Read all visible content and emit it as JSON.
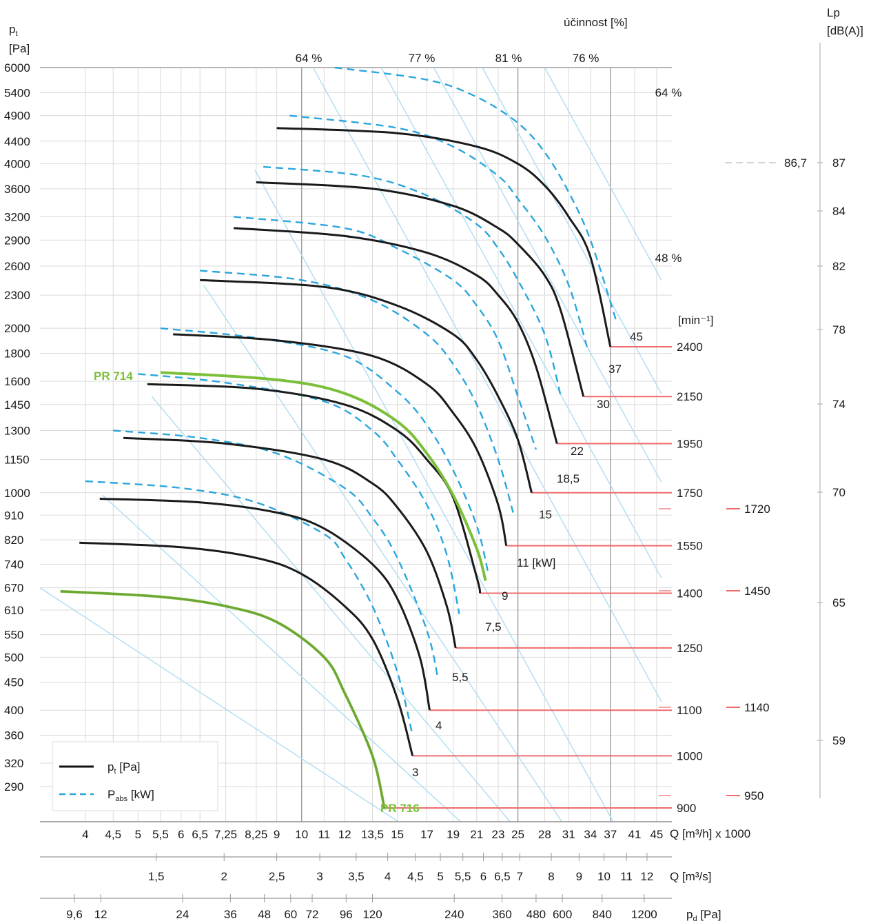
{
  "chart_data": {
    "type": "line",
    "title": "",
    "y_axis": {
      "label_line1": "p",
      "label_sub": "t",
      "label_line2": "[Pa]",
      "ticks": [
        "6000",
        "5400",
        "4900",
        "4400",
        "4000",
        "3600",
        "3200",
        "2900",
        "2600",
        "2300",
        "2000",
        "1800",
        "1600",
        "1450",
        "1300",
        "1150",
        "1000",
        "910",
        "820",
        "740",
        "670",
        "610",
        "550",
        "500",
        "450",
        "400",
        "360",
        "320",
        "290"
      ]
    },
    "x_axis_flow_mh": {
      "unit_label": "Q [m³/h] x 1000",
      "ticks": [
        "4",
        "4,5",
        "5",
        "5,5",
        "6",
        "6,5",
        "7,25",
        "8,25",
        "9",
        "10",
        "11",
        "12",
        "13,5",
        "15",
        "17",
        "19",
        "21",
        "23",
        "25",
        "28",
        "31",
        "34",
        "37",
        "41",
        "45"
      ]
    },
    "x_axis_flow_ms": {
      "unit_label": "Q [m³/s]",
      "ticks": [
        "1,5",
        "2",
        "2,5",
        "3",
        "3,5",
        "4",
        "4,5",
        "5",
        "5,5",
        "6",
        "6,5",
        "7",
        "8",
        "9",
        "10",
        "11",
        "12"
      ]
    },
    "x_axis_dynamic_pressure": {
      "unit_label_main": "p",
      "unit_label_sub": "d",
      "unit_label_tail": " [Pa]",
      "ticks": [
        "9,6",
        "12",
        "24",
        "36",
        "48",
        "60",
        "72",
        "96",
        "120",
        "240",
        "360",
        "480",
        "600",
        "840",
        "1200"
      ]
    },
    "efficiency": {
      "title": "účinnost [%]",
      "labels": [
        "64 %",
        "77 %",
        "81 %",
        "76 %",
        "64 %",
        "48 %"
      ]
    },
    "speed_axis": {
      "label": "[min⁻¹]",
      "values": [
        "2400",
        "2150",
        "1950",
        "1750",
        "1550",
        "1400",
        "1250",
        "1100",
        "1000",
        "900"
      ],
      "secondary_values": [
        "1720",
        "1450",
        "1140",
        "950"
      ]
    },
    "noise_axis": {
      "label_line1": "Lp",
      "label_line2": "[dB(A)]",
      "ticks": [
        "87",
        "84",
        "82",
        "78",
        "74",
        "70",
        "65",
        "59"
      ],
      "marker_value": "86,7"
    },
    "motor_power_labels": [
      "45",
      "37",
      "30",
      "22",
      "18,5",
      "15",
      "11 [kW]",
      "9",
      "7,5",
      "5,5",
      "4",
      "3"
    ],
    "legend": {
      "pt_prefix": "p",
      "pt_sub": "t",
      "pt_suffix": " [Pa]",
      "pabs_prefix": "P",
      "pabs_sub": "abs",
      "pabs_suffix": " [kW]"
    },
    "series_labels": [
      "PR 714",
      "PR 716"
    ],
    "curves_pt": [
      {
        "speed": "2400",
        "q": [
          9,
          15,
          21,
          25,
          28,
          31,
          34,
          37
        ],
        "pt": [
          4650,
          4550,
          4300,
          4000,
          3650,
          3200,
          2700,
          1850
        ]
      },
      {
        "speed": "2150",
        "q": [
          8.25,
          13.5,
          19,
          23,
          25,
          28,
          30,
          33
        ],
        "pt": [
          3700,
          3600,
          3350,
          3050,
          2850,
          2500,
          2150,
          1500
        ]
      },
      {
        "speed": "1950",
        "q": [
          7.5,
          12,
          17,
          21,
          23,
          25,
          27,
          29.5
        ],
        "pt": [
          3050,
          2950,
          2750,
          2500,
          2300,
          2050,
          1700,
          1230
        ]
      },
      {
        "speed": "1750",
        "q": [
          6.5,
          11,
          15,
          19,
          21,
          23,
          25,
          26.5
        ],
        "pt": [
          2450,
          2380,
          2200,
          1950,
          1750,
          1500,
          1250,
          1000
        ]
      },
      {
        "speed": "1550",
        "q": [
          5.8,
          9,
          13.5,
          17,
          19,
          21,
          23,
          23.8
        ],
        "pt": [
          1950,
          1900,
          1780,
          1580,
          1400,
          1200,
          950,
          800
        ]
      },
      {
        "speed": "1400",
        "q": [
          5.2,
          8.25,
          12,
          15,
          17,
          19,
          21,
          21.3
        ],
        "pt": [
          1580,
          1550,
          1450,
          1300,
          1150,
          980,
          700,
          655
        ]
      },
      {
        "speed": "1250",
        "q": [
          4.7,
          7.25,
          11,
          13.5,
          15,
          17,
          18.5,
          19.2
        ],
        "pt": [
          1260,
          1230,
          1150,
          1040,
          940,
          780,
          620,
          520
        ]
      },
      {
        "speed": "1100",
        "q": [
          4.25,
          6.5,
          9,
          11,
          13.5,
          15,
          16.5,
          17.2
        ],
        "pt": [
          975,
          960,
          920,
          860,
          740,
          640,
          500,
          400
        ]
      },
      {
        "speed": "1000",
        "q": [
          3.9,
          6,
          8.25,
          10,
          12,
          13.5,
          15,
          16
        ],
        "pt": [
          810,
          795,
          760,
          710,
          620,
          540,
          420,
          330
        ]
      },
      {
        "speed": "900",
        "q": [
          3.6,
          5.5,
          7.25,
          9,
          11,
          12,
          13.5,
          14.2
        ],
        "pt": [
          660,
          645,
          620,
          580,
          500,
          430,
          330,
          265
        ]
      }
    ],
    "curve_pr714": {
      "q": [
        5.5,
        9,
        12,
        15,
        17,
        19,
        21,
        21.8
      ],
      "pt": [
        1660,
        1610,
        1520,
        1350,
        1180,
        990,
        790,
        690
      ]
    },
    "curve_pr716": {
      "q": [
        3.6,
        5.5,
        7.25,
        9,
        11,
        12,
        13.5,
        14.2
      ],
      "pt": [
        660,
        645,
        620,
        580,
        500,
        430,
        330,
        265
      ]
    },
    "curves_pabs": [
      {
        "q": [
          11.5,
          17,
          21,
          25,
          28,
          31,
          34,
          38
        ],
        "pt": [
          6000,
          5700,
          5300,
          4750,
          4200,
          3550,
          2900,
          2050
        ]
      },
      {
        "q": [
          9.5,
          15,
          19,
          23,
          25,
          28,
          31,
          33.5
        ],
        "pt": [
          4900,
          4650,
          4300,
          3800,
          3450,
          2950,
          2400,
          1850
        ]
      },
      {
        "q": [
          8.5,
          13,
          17,
          21,
          23,
          25,
          28,
          30
        ],
        "pt": [
          3950,
          3800,
          3500,
          3100,
          2800,
          2450,
          1950,
          1500
        ]
      },
      {
        "q": [
          7.5,
          12,
          15,
          19,
          21,
          23,
          25,
          27
        ],
        "pt": [
          3200,
          3050,
          2800,
          2450,
          2200,
          1900,
          1500,
          1200
        ]
      },
      {
        "q": [
          6.5,
          10,
          13.5,
          17,
          19,
          21,
          23,
          24.5
        ],
        "pt": [
          2550,
          2450,
          2250,
          1950,
          1720,
          1450,
          1150,
          920
        ]
      },
      {
        "q": [
          5.5,
          8.25,
          12,
          15,
          17,
          19,
          21,
          22
        ],
        "pt": [
          2000,
          1920,
          1780,
          1530,
          1330,
          1100,
          870,
          720
        ]
      },
      {
        "q": [
          5,
          7.25,
          11,
          13.5,
          15,
          17,
          18.5,
          19.5
        ],
        "pt": [
          1650,
          1590,
          1470,
          1300,
          1150,
          950,
          770,
          600
        ]
      },
      {
        "q": [
          4.5,
          6.5,
          9,
          12,
          13.5,
          15,
          17,
          17.8
        ],
        "pt": [
          1300,
          1260,
          1180,
          1020,
          900,
          760,
          560,
          460
        ]
      },
      {
        "q": [
          4,
          6,
          8.25,
          11,
          12,
          13.5,
          15,
          16
        ],
        "pt": [
          1050,
          1020,
          960,
          840,
          760,
          620,
          470,
          360
        ]
      }
    ]
  }
}
